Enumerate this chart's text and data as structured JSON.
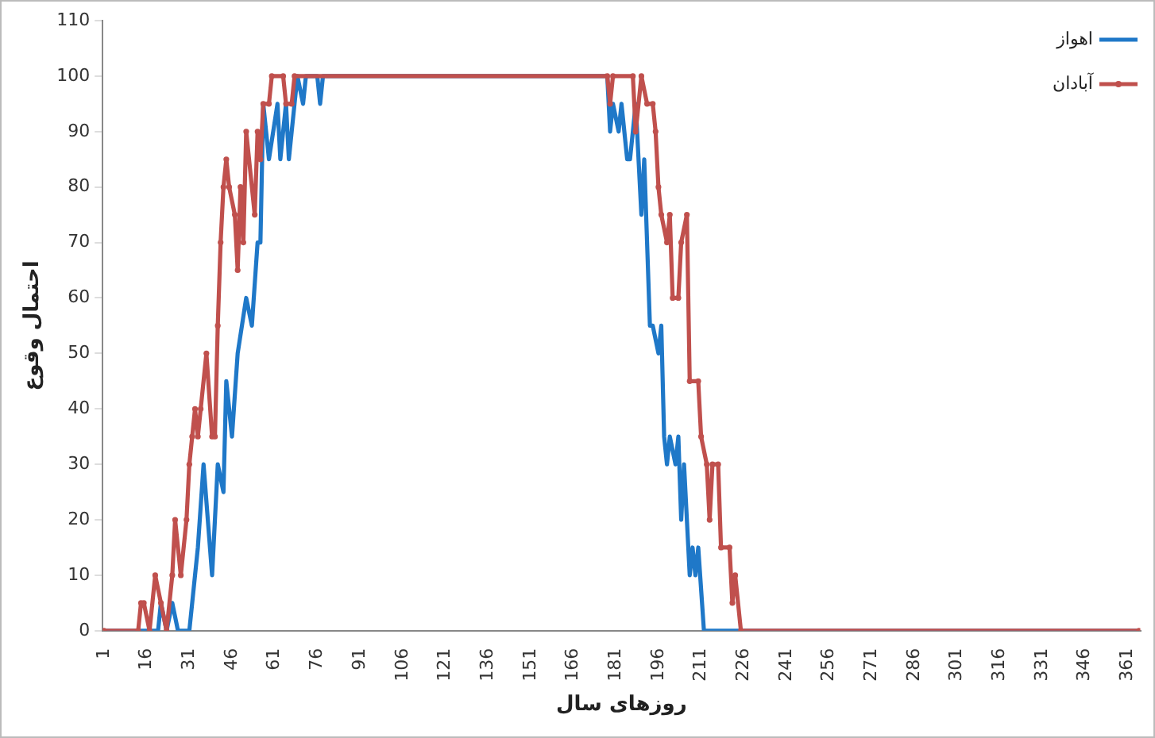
{
  "chart_data": {
    "type": "line",
    "xlabel": "روزهای سال",
    "ylabel": "احتمال وقوع",
    "xlim": [
      0.5,
      365.5
    ],
    "xticks": [
      1,
      16,
      31,
      46,
      61,
      76,
      91,
      106,
      121,
      136,
      151,
      166,
      181,
      196,
      211,
      226,
      241,
      256,
      271,
      286,
      301,
      316,
      331,
      346,
      361
    ],
    "ylim": [
      0,
      110
    ],
    "yticks": [
      0,
      10,
      20,
      30,
      40,
      50,
      60,
      70,
      80,
      90,
      100,
      110
    ],
    "grid": false,
    "legend": "top right",
    "line_style": "solid",
    "series": [
      {
        "name": "اهواز",
        "color": "#1f78c8",
        "marker": "none",
        "x": [
          1,
          20,
          21,
          23,
          25,
          27,
          31,
          33,
          34,
          36,
          39,
          41,
          43,
          44,
          46,
          48,
          51,
          53,
          55,
          56,
          57,
          59,
          62,
          63,
          65,
          66,
          67,
          69,
          71,
          72,
          76,
          77,
          78,
          178,
          179,
          180,
          182,
          183,
          185,
          186,
          188,
          190,
          191,
          193,
          194,
          196,
          197,
          198,
          199,
          200,
          202,
          203,
          204,
          205,
          207,
          208,
          209,
          210,
          212,
          365
        ],
        "values": [
          0,
          0,
          5,
          0,
          5,
          0,
          0,
          10,
          15,
          30,
          10,
          30,
          25,
          45,
          35,
          50,
          60,
          55,
          70,
          70,
          95,
          85,
          95,
          85,
          95,
          85,
          90,
          100,
          95,
          100,
          100,
          95,
          100,
          100,
          90,
          95,
          90,
          95,
          85,
          85,
          95,
          75,
          85,
          55,
          55,
          50,
          55,
          35,
          30,
          35,
          30,
          35,
          20,
          30,
          10,
          15,
          10,
          15,
          0,
          0
        ]
      },
      {
        "name": "آبادان",
        "color": "#c0504d",
        "marker": "circle",
        "x": [
          1,
          13,
          14,
          15,
          17,
          19,
          21,
          23,
          25,
          26,
          28,
          30,
          31,
          32,
          33,
          34,
          35,
          37,
          39,
          40,
          41,
          42,
          43,
          44,
          45,
          47,
          48,
          49,
          50,
          51,
          54,
          55,
          56,
          57,
          59,
          60,
          64,
          65,
          67,
          68,
          178,
          179,
          180,
          187,
          188,
          190,
          192,
          194,
          195,
          196,
          197,
          199,
          200,
          201,
          203,
          204,
          206,
          207,
          210,
          211,
          213,
          214,
          215,
          217,
          218,
          221,
          222,
          223,
          225,
          365
        ],
        "values": [
          0,
          0,
          5,
          5,
          0,
          10,
          5,
          0,
          10,
          20,
          10,
          20,
          30,
          35,
          40,
          35,
          40,
          50,
          35,
          35,
          55,
          70,
          80,
          85,
          80,
          75,
          65,
          80,
          70,
          90,
          75,
          90,
          85,
          95,
          95,
          100,
          100,
          95,
          95,
          100,
          100,
          95,
          100,
          100,
          90,
          100,
          95,
          95,
          90,
          80,
          75,
          70,
          75,
          60,
          60,
          70,
          75,
          45,
          45,
          35,
          30,
          20,
          30,
          30,
          15,
          15,
          5,
          10,
          0,
          0
        ]
      }
    ]
  }
}
